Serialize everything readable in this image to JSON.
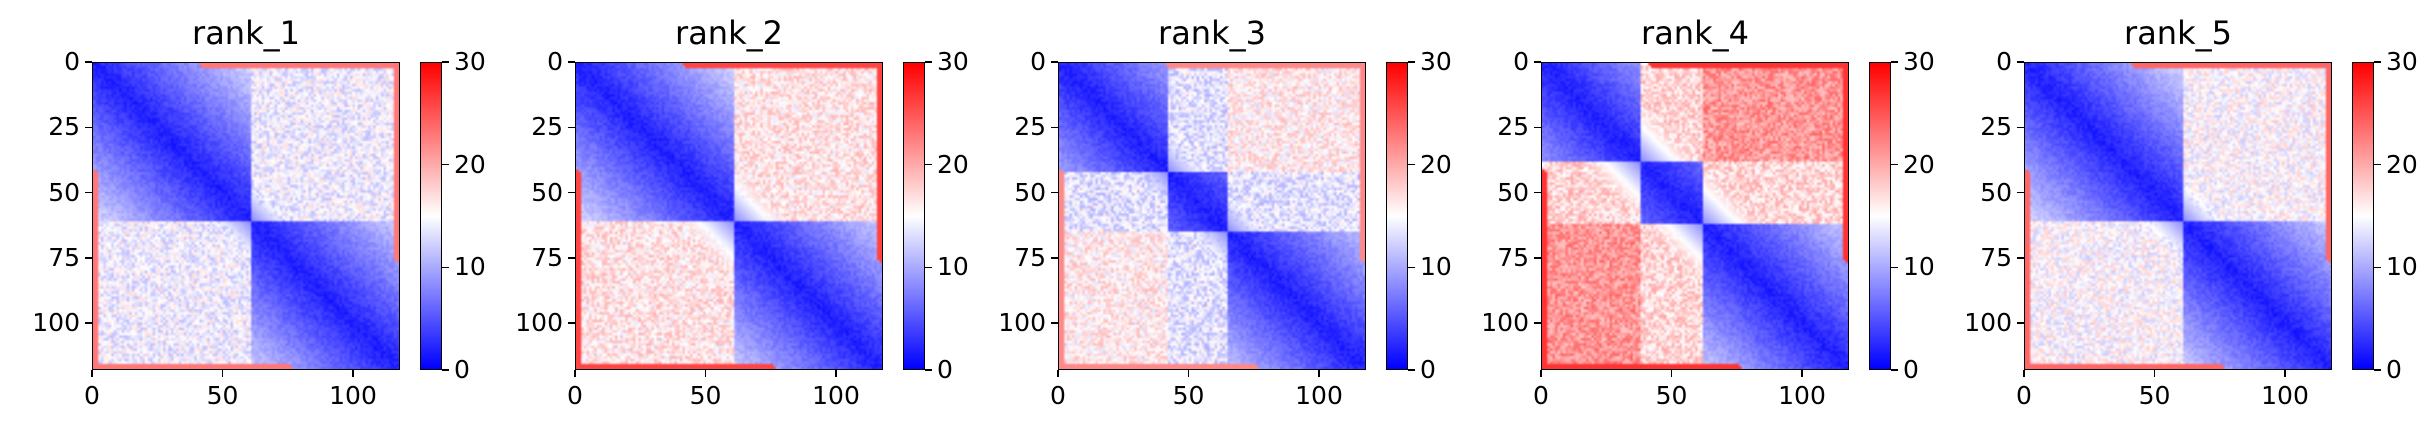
{
  "chart_data": [
    {
      "type": "heatmap",
      "title": "rank_1",
      "x_ticks": [
        "0",
        "50",
        "100"
      ],
      "y_ticks": [
        "0",
        "25",
        "50",
        "75",
        "100"
      ],
      "xlim": [
        0,
        118
      ],
      "ylim": [
        118,
        0
      ],
      "colorbar": {
        "ticks": [
          "0",
          "10",
          "20",
          "30"
        ],
        "range": [
          0,
          30
        ],
        "colormap": "bwr"
      },
      "blocks": [
        [
          0,
          61
        ],
        [
          61,
          118
        ]
      ],
      "off_block_level": 17
    },
    {
      "type": "heatmap",
      "title": "rank_2",
      "x_ticks": [
        "0",
        "50",
        "100"
      ],
      "y_ticks": [
        "0",
        "25",
        "50",
        "75",
        "100"
      ],
      "xlim": [
        0,
        118
      ],
      "ylim": [
        118,
        0
      ],
      "colorbar": {
        "ticks": [
          "0",
          "10",
          "20",
          "30"
        ],
        "range": [
          0,
          30
        ],
        "colormap": "bwr"
      },
      "blocks": [
        [
          0,
          61
        ],
        [
          61,
          118
        ]
      ],
      "off_block_level": 20
    },
    {
      "type": "heatmap",
      "title": "rank_3",
      "x_ticks": [
        "0",
        "50",
        "100"
      ],
      "y_ticks": [
        "0",
        "25",
        "50",
        "75",
        "100"
      ],
      "xlim": [
        0,
        118
      ],
      "ylim": [
        118,
        0
      ],
      "colorbar": {
        "ticks": [
          "0",
          "10",
          "20",
          "30"
        ],
        "range": [
          0,
          30
        ],
        "colormap": "bwr"
      },
      "blocks": [
        [
          0,
          42
        ],
        [
          42,
          65
        ],
        [
          65,
          118
        ]
      ],
      "off_block_level": 16
    },
    {
      "type": "heatmap",
      "title": "rank_4",
      "x_ticks": [
        "0",
        "50",
        "100"
      ],
      "y_ticks": [
        "0",
        "25",
        "50",
        "75",
        "100"
      ],
      "xlim": [
        0,
        118
      ],
      "ylim": [
        118,
        0
      ],
      "colorbar": {
        "ticks": [
          "0",
          "10",
          "20",
          "30"
        ],
        "range": [
          0,
          30
        ],
        "colormap": "bwr"
      },
      "blocks": [
        [
          0,
          38
        ],
        [
          38,
          62
        ],
        [
          62,
          118
        ]
      ],
      "off_block_level": 21
    },
    {
      "type": "heatmap",
      "title": "rank_5",
      "x_ticks": [
        "0",
        "50",
        "100"
      ],
      "y_ticks": [
        "0",
        "25",
        "50",
        "75",
        "100"
      ],
      "xlim": [
        0,
        118
      ],
      "ylim": [
        118,
        0
      ],
      "colorbar": {
        "ticks": [
          "0",
          "10",
          "20",
          "30"
        ],
        "range": [
          0,
          30
        ],
        "colormap": "bwr"
      },
      "blocks": [
        [
          0,
          61
        ],
        [
          61,
          118
        ]
      ],
      "off_block_level": 18
    }
  ]
}
